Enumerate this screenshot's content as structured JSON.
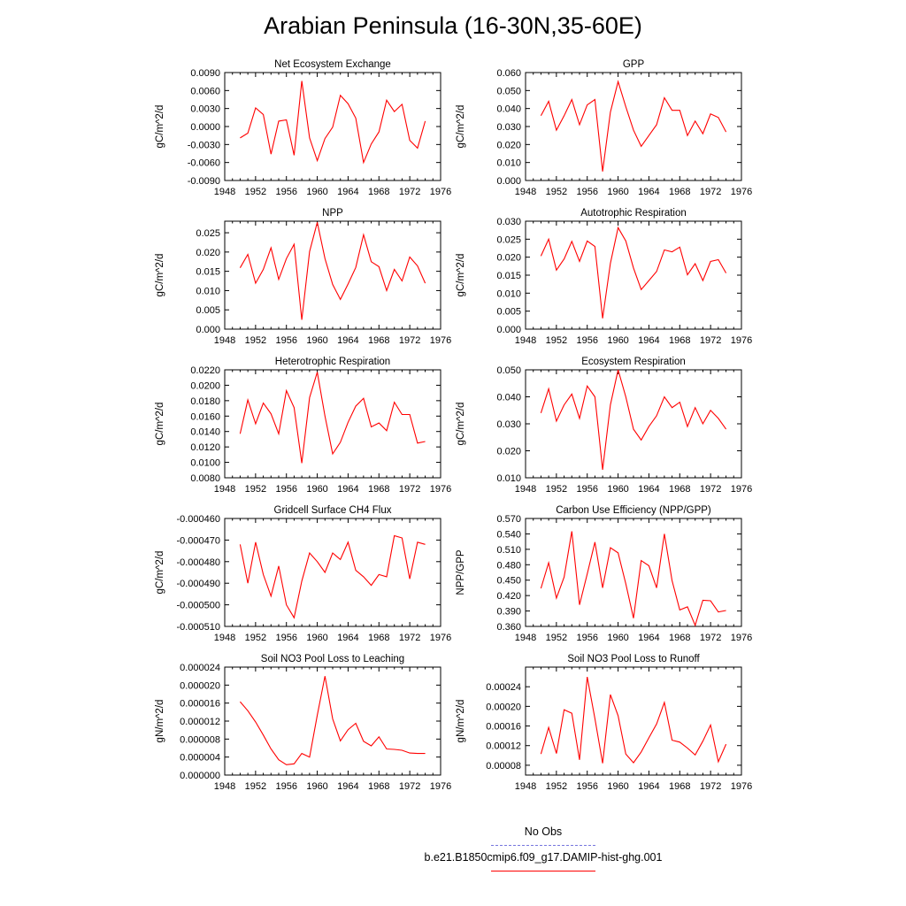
{
  "title": "Arabian Peninsula (16-30N,35-60E)",
  "colors": {
    "series": "#ff0000",
    "no_obs": "#7777dd",
    "axis": "#000000"
  },
  "legend": [
    {
      "label": "No Obs",
      "color": "#7777dd",
      "style": "dashed"
    },
    {
      "label": "b.e21.B1850cmip6.f09_g17.DAMIP-hist-ghg.001",
      "color": "#ff0000",
      "style": "solid"
    }
  ],
  "chart_data": [
    {
      "type": "line",
      "title": "Net Ecosystem Exchange",
      "ylabel": "gC/m^2/d",
      "xlim": [
        1948,
        1976
      ],
      "ylim": [
        -0.009,
        0.009
      ],
      "xticks": [
        "1948",
        "1952",
        "1956",
        "1960",
        "1964",
        "1968",
        "1972",
        "1976"
      ],
      "yticks": [
        "-0.0090",
        "-0.0060",
        "-0.0030",
        "0.0000",
        "0.0030",
        "0.0060",
        "0.0090"
      ],
      "x": [
        1950,
        1951,
        1952,
        1953,
        1954,
        1955,
        1956,
        1957,
        1958,
        1959,
        1960,
        1961,
        1962,
        1963,
        1964,
        1965,
        1966,
        1967,
        1968,
        1969,
        1970,
        1971,
        1972,
        1973,
        1974
      ],
      "series": [
        {
          "values": [
            -0.0019,
            -0.0011,
            0.0031,
            0.002,
            -0.0046,
            0.0009,
            0.0011,
            -0.0048,
            0.0076,
            -0.0019,
            -0.0057,
            -0.002,
            -0.0001,
            0.0052,
            0.0038,
            0.0014,
            -0.006,
            -0.0029,
            -0.0009,
            0.0044,
            0.0025,
            0.0037,
            -0.0023,
            -0.0036,
            0.0009
          ]
        }
      ]
    },
    {
      "type": "line",
      "title": "GPP",
      "ylabel": "gC/m^2/d",
      "xlim": [
        1948,
        1976
      ],
      "ylim": [
        0.0,
        0.06
      ],
      "xticks": [
        "1948",
        "1952",
        "1956",
        "1960",
        "1964",
        "1968",
        "1972",
        "1976"
      ],
      "yticks": [
        "0.000",
        "0.010",
        "0.020",
        "0.030",
        "0.040",
        "0.050",
        "0.060"
      ],
      "x": [
        1950,
        1951,
        1952,
        1953,
        1954,
        1955,
        1956,
        1957,
        1958,
        1959,
        1960,
        1961,
        1962,
        1963,
        1964,
        1965,
        1966,
        1967,
        1968,
        1969,
        1970,
        1971,
        1972,
        1973,
        1974
      ],
      "series": [
        {
          "values": [
            0.036,
            0.044,
            0.028,
            0.036,
            0.045,
            0.031,
            0.042,
            0.045,
            0.005,
            0.038,
            0.055,
            0.041,
            0.028,
            0.019,
            0.025,
            0.031,
            0.046,
            0.039,
            0.039,
            0.025,
            0.033,
            0.026,
            0.037,
            0.035,
            0.027
          ]
        }
      ]
    },
    {
      "type": "line",
      "title": "NPP",
      "ylabel": "gC/m^2/d",
      "xlim": [
        1948,
        1976
      ],
      "ylim": [
        0.0,
        0.028
      ],
      "xticks": [
        "1948",
        "1952",
        "1956",
        "1960",
        "1964",
        "1968",
        "1972",
        "1976"
      ],
      "yticks": [
        "0.000",
        "0.005",
        "0.010",
        "0.015",
        "0.020",
        "0.025"
      ],
      "x": [
        1950,
        1951,
        1952,
        1953,
        1954,
        1955,
        1956,
        1957,
        1958,
        1959,
        1960,
        1961,
        1962,
        1963,
        1964,
        1965,
        1966,
        1967,
        1968,
        1969,
        1970,
        1971,
        1972,
        1973,
        1974
      ],
      "series": [
        {
          "values": [
            0.0159,
            0.0194,
            0.0119,
            0.0155,
            0.0211,
            0.0129,
            0.0183,
            0.022,
            0.0024,
            0.0201,
            0.0277,
            0.0183,
            0.0116,
            0.0077,
            0.0117,
            0.016,
            0.0245,
            0.0175,
            0.0162,
            0.01,
            0.0155,
            0.0125,
            0.0187,
            0.0164,
            0.0119
          ]
        }
      ]
    },
    {
      "type": "line",
      "title": "Autotrophic Respiration",
      "ylabel": "gC/m^2/d",
      "xlim": [
        1948,
        1976
      ],
      "ylim": [
        0.0,
        0.03
      ],
      "xticks": [
        "1948",
        "1952",
        "1956",
        "1960",
        "1964",
        "1968",
        "1972",
        "1976"
      ],
      "yticks": [
        "0.000",
        "0.005",
        "0.010",
        "0.015",
        "0.020",
        "0.025",
        "0.030"
      ],
      "x": [
        1950,
        1951,
        1952,
        1953,
        1954,
        1955,
        1956,
        1957,
        1958,
        1959,
        1960,
        1961,
        1962,
        1963,
        1964,
        1965,
        1966,
        1967,
        1968,
        1969,
        1970,
        1971,
        1972,
        1973,
        1974
      ],
      "series": [
        {
          "values": [
            0.0203,
            0.025,
            0.0164,
            0.0195,
            0.0244,
            0.0188,
            0.0245,
            0.023,
            0.003,
            0.0183,
            0.0282,
            0.0245,
            0.017,
            0.011,
            0.0135,
            0.016,
            0.022,
            0.0215,
            0.0228,
            0.0151,
            0.0182,
            0.0135,
            0.0188,
            0.0193,
            0.0156
          ]
        }
      ]
    },
    {
      "type": "line",
      "title": "Heterotrophic Respiration",
      "ylabel": "gC/m^2/d",
      "xlim": [
        1948,
        1976
      ],
      "ylim": [
        0.008,
        0.022
      ],
      "xticks": [
        "1948",
        "1952",
        "1956",
        "1960",
        "1964",
        "1968",
        "1972",
        "1976"
      ],
      "yticks": [
        "0.0080",
        "0.0100",
        "0.0120",
        "0.0140",
        "0.0160",
        "0.0180",
        "0.0200",
        "0.0220"
      ],
      "x": [
        1950,
        1951,
        1952,
        1953,
        1954,
        1955,
        1956,
        1957,
        1958,
        1959,
        1960,
        1961,
        1962,
        1963,
        1964,
        1965,
        1966,
        1967,
        1968,
        1969,
        1970,
        1971,
        1972,
        1973,
        1974
      ],
      "series": [
        {
          "values": [
            0.0137,
            0.0181,
            0.015,
            0.0177,
            0.0163,
            0.0137,
            0.0193,
            0.0171,
            0.0099,
            0.0184,
            0.0217,
            0.016,
            0.0111,
            0.0126,
            0.0152,
            0.0173,
            0.0183,
            0.0146,
            0.0151,
            0.0141,
            0.0178,
            0.0162,
            0.0162,
            0.0125,
            0.0127
          ]
        }
      ]
    },
    {
      "type": "line",
      "title": "Ecosystem Respiration",
      "ylabel": "gC/m^2/d",
      "xlim": [
        1948,
        1976
      ],
      "ylim": [
        0.01,
        0.05
      ],
      "xticks": [
        "1948",
        "1952",
        "1956",
        "1960",
        "1964",
        "1968",
        "1972",
        "1976"
      ],
      "yticks": [
        "0.010",
        "0.020",
        "0.030",
        "0.040",
        "0.050"
      ],
      "x": [
        1950,
        1951,
        1952,
        1953,
        1954,
        1955,
        1956,
        1957,
        1958,
        1959,
        1960,
        1961,
        1962,
        1963,
        1964,
        1965,
        1966,
        1967,
        1968,
        1969,
        1970,
        1971,
        1972,
        1973,
        1974
      ],
      "series": [
        {
          "values": [
            0.034,
            0.043,
            0.031,
            0.037,
            0.041,
            0.032,
            0.044,
            0.04,
            0.013,
            0.037,
            0.05,
            0.04,
            0.028,
            0.024,
            0.029,
            0.033,
            0.04,
            0.036,
            0.038,
            0.029,
            0.036,
            0.03,
            0.035,
            0.032,
            0.028
          ]
        }
      ]
    },
    {
      "type": "line",
      "title": "Gridcell Surface CH4 Flux",
      "ylabel": "gC/m^2/d",
      "xlim": [
        1948,
        1976
      ],
      "ylim": [
        -0.00051,
        -0.00046
      ],
      "xticks": [
        "1948",
        "1952",
        "1956",
        "1960",
        "1964",
        "1968",
        "1972",
        "1976"
      ],
      "yticks": [
        "-0.000510",
        "-0.000500",
        "-0.000490",
        "-0.000480",
        "-0.000470",
        "-0.000460"
      ],
      "x": [
        1950,
        1951,
        1952,
        1953,
        1954,
        1955,
        1956,
        1957,
        1958,
        1959,
        1960,
        1961,
        1962,
        1963,
        1964,
        1965,
        1966,
        1967,
        1968,
        1969,
        1970,
        1971,
        1972,
        1973,
        1974
      ],
      "series": [
        {
          "values": [
            -0.000472,
            -0.00049,
            -0.000471,
            -0.000486,
            -0.000496,
            -0.000482,
            -0.0005,
            -0.000506,
            -0.000489,
            -0.000476,
            -0.00048,
            -0.000485,
            -0.000476,
            -0.000479,
            -0.000471,
            -0.000484,
            -0.000487,
            -0.000491,
            -0.000486,
            -0.000487,
            -0.000468,
            -0.000469,
            -0.000488,
            -0.000471,
            -0.000472
          ]
        }
      ]
    },
    {
      "type": "line",
      "title": "Carbon Use Efficiency (NPP/GPP)",
      "ylabel": "NPP/GPP",
      "xlim": [
        1948,
        1976
      ],
      "ylim": [
        0.36,
        0.57
      ],
      "xticks": [
        "1948",
        "1952",
        "1956",
        "1960",
        "1964",
        "1968",
        "1972",
        "1976"
      ],
      "yticks": [
        "0.360",
        "0.390",
        "0.420",
        "0.450",
        "0.480",
        "0.510",
        "0.540",
        "0.570"
      ],
      "x": [
        1950,
        1951,
        1952,
        1953,
        1954,
        1955,
        1956,
        1957,
        1958,
        1959,
        1960,
        1961,
        1962,
        1963,
        1964,
        1965,
        1966,
        1967,
        1968,
        1969,
        1970,
        1971,
        1972,
        1973,
        1974
      ],
      "series": [
        {
          "values": [
            0.434,
            0.484,
            0.415,
            0.456,
            0.545,
            0.402,
            0.462,
            0.524,
            0.435,
            0.513,
            0.503,
            0.443,
            0.376,
            0.488,
            0.478,
            0.435,
            0.54,
            0.449,
            0.392,
            0.398,
            0.362,
            0.411,
            0.41,
            0.388,
            0.391
          ]
        }
      ]
    },
    {
      "type": "line",
      "title": "Soil NO3 Pool Loss to Leaching",
      "ylabel": "gN/m^2/d",
      "xlim": [
        1948,
        1976
      ],
      "ylim": [
        0.0,
        2.4e-05
      ],
      "xticks": [
        "1948",
        "1952",
        "1956",
        "1960",
        "1964",
        "1968",
        "1972",
        "1976"
      ],
      "yticks": [
        "0.000000",
        "0.000004",
        "0.000008",
        "0.000012",
        "0.000016",
        "0.000020",
        "0.000024"
      ],
      "x": [
        1950,
        1951,
        1952,
        1953,
        1954,
        1955,
        1956,
        1957,
        1958,
        1959,
        1960,
        1961,
        1962,
        1963,
        1964,
        1965,
        1966,
        1967,
        1968,
        1969,
        1970,
        1971,
        1972,
        1973,
        1974
      ],
      "series": [
        {
          "values": [
            1.63e-05,
            1.43e-05,
            1.18e-05,
            8.9e-06,
            5.8e-06,
            3.4e-06,
            2.3e-06,
            2.5e-06,
            4.8e-06,
            4e-06,
            1.33e-05,
            2.2e-05,
            1.25e-05,
            7.6e-06,
            1.01e-05,
            1.15e-05,
            7.5e-06,
            6.5e-06,
            8.5e-06,
            5.8e-06,
            5.7e-06,
            5.5e-06,
            4.9e-06,
            4.8e-06,
            4.8e-06
          ]
        }
      ]
    },
    {
      "type": "line",
      "title": "Soil NO3 Pool Loss to Runoff",
      "ylabel": "gN/m^2/d",
      "xlim": [
        1948,
        1976
      ],
      "ylim": [
        6e-05,
        0.00028
      ],
      "xticks": [
        "1948",
        "1952",
        "1956",
        "1960",
        "1964",
        "1968",
        "1972",
        "1976"
      ],
      "yticks": [
        "0.00008",
        "0.00012",
        "0.00016",
        "0.00020",
        "0.00024"
      ],
      "x": [
        1950,
        1951,
        1952,
        1953,
        1954,
        1955,
        1956,
        1957,
        1958,
        1959,
        1960,
        1961,
        1962,
        1963,
        1964,
        1965,
        1966,
        1967,
        1968,
        1969,
        1970,
        1971,
        1972,
        1973,
        1974
      ],
      "series": [
        {
          "values": [
            0.000103,
            0.000157,
            0.000104,
            0.000193,
            0.000186,
            9.1e-05,
            0.00026,
            0.000175,
            8.4e-05,
            0.000224,
            0.000181,
            0.000103,
            8.5e-05,
            0.000107,
            0.000136,
            0.000164,
            0.000208,
            0.000131,
            0.000127,
            0.000115,
            0.000101,
            0.000129,
            0.000162,
            8.7e-05,
            0.000123
          ]
        }
      ]
    }
  ]
}
